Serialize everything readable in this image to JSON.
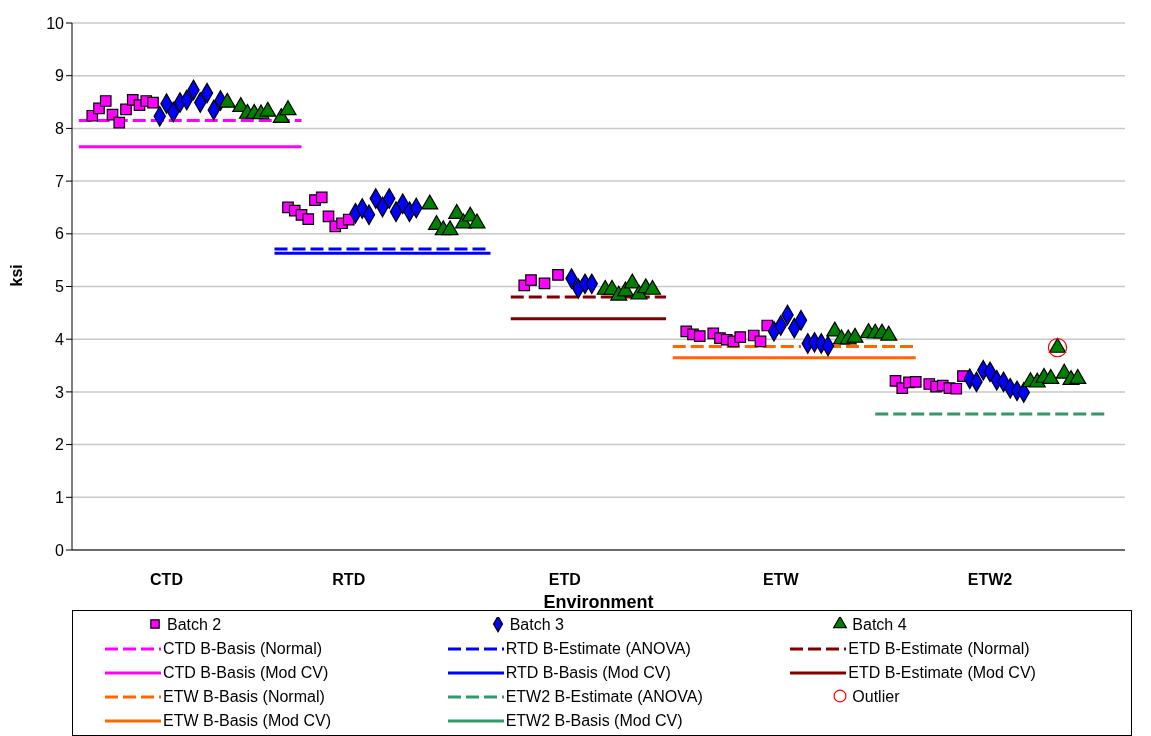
{
  "chart_data": {
    "type": "scatter",
    "xlabel": "Environment",
    "ylabel": "ksi",
    "categories": [
      null,
      null,
      null,
      null,
      null,
      null,
      null,
      null,
      null,
      null,
      null,
      null,
      null,
      null,
      "CTD",
      null,
      null,
      null,
      null,
      null,
      null,
      null,
      null,
      null,
      null,
      null,
      null,
      null,
      null,
      null,
      null,
      null,
      null,
      null,
      null,
      null,
      null,
      null,
      null,
      null,
      null,
      "RTD",
      null,
      null,
      null,
      null,
      null,
      null,
      null,
      null,
      null,
      null,
      null,
      null,
      null,
      null,
      null,
      null,
      null,
      null,
      null,
      null,
      null,
      null,
      null,
      null,
      null,
      null,
      null,
      null,
      null,
      null,
      null,
      "ETD",
      null,
      null,
      null,
      null,
      null,
      null,
      null,
      null,
      null,
      null,
      null,
      null,
      null,
      null,
      null,
      null,
      null,
      null,
      null,
      null,
      null,
      null,
      null,
      null,
      null,
      null,
      null,
      null,
      null,
      null,
      null,
      "ETW",
      null,
      null,
      null,
      null,
      null,
      null,
      null,
      null,
      null,
      null,
      null,
      null,
      null,
      null,
      null,
      null,
      null,
      null,
      null,
      null,
      null,
      null,
      null,
      null,
      null,
      null,
      null,
      null,
      null,
      null,
      "ETW2",
      null,
      null,
      null,
      null,
      null,
      null,
      null,
      null,
      null,
      null,
      null,
      null,
      null,
      null,
      null,
      null,
      null,
      null,
      null,
      null
    ],
    "ylim": [
      0,
      10
    ],
    "yticks": [
      0,
      1,
      2,
      3,
      4,
      5,
      6,
      7,
      8,
      9,
      10
    ],
    "grid": "y",
    "legend": "bottom",
    "series": [
      {
        "name": "Batch 2",
        "marker": "square",
        "color": "#ff00ff",
        "values": [
          null,
          null,
          null,
          8.24,
          8.38,
          8.52,
          8.26,
          8.11,
          8.36,
          8.54,
          8.44,
          8.52,
          8.49,
          null,
          null,
          null,
          null,
          null,
          null,
          null,
          null,
          null,
          null,
          null,
          null,
          null,
          null,
          null,
          null,
          null,
          null,
          null,
          6.5,
          6.44,
          6.36,
          6.28,
          6.64,
          6.69,
          6.33,
          6.14,
          6.2,
          6.27,
          null,
          null,
          null,
          null,
          null,
          null,
          null,
          null,
          null,
          null,
          null,
          null,
          null,
          null,
          null,
          null,
          null,
          null,
          null,
          null,
          null,
          null,
          null,
          null,
          null,
          5.02,
          5.12,
          null,
          5.06,
          null,
          5.22,
          null,
          null,
          null,
          null,
          null,
          null,
          null,
          null,
          null,
          null,
          null,
          null,
          null,
          null,
          null,
          null,
          null,
          null,
          4.15,
          4.09,
          4.06,
          null,
          4.11,
          4.02,
          3.99,
          3.96,
          4.04,
          null,
          4.07,
          3.96,
          4.26,
          null,
          null,
          null,
          null,
          null,
          null,
          null,
          null,
          null,
          null,
          null,
          null,
          null,
          null,
          null,
          null,
          null,
          null,
          3.21,
          3.07,
          3.18,
          3.19,
          null,
          3.15,
          3.1,
          3.12,
          3.07,
          3.06,
          3.3,
          null,
          null,
          null,
          null,
          null,
          null,
          null,
          null,
          null,
          null,
          null,
          null,
          null,
          null,
          null,
          null,
          null,
          null,
          null,
          null,
          null,
          null,
          null,
          null
        ]
      },
      {
        "name": "Batch 3",
        "marker": "diamond",
        "color": "#0000ff",
        "values": [
          null,
          null,
          null,
          null,
          null,
          null,
          null,
          null,
          null,
          null,
          null,
          null,
          null,
          8.23,
          8.47,
          8.31,
          8.49,
          8.54,
          8.73,
          8.49,
          8.67,
          8.35,
          8.53,
          null,
          null,
          null,
          null,
          null,
          null,
          null,
          null,
          null,
          null,
          null,
          null,
          null,
          null,
          null,
          null,
          null,
          null,
          null,
          6.39,
          6.48,
          6.36,
          6.67,
          6.51,
          6.67,
          6.42,
          6.57,
          6.42,
          6.49,
          null,
          null,
          null,
          null,
          null,
          null,
          null,
          null,
          null,
          null,
          null,
          null,
          null,
          null,
          null,
          null,
          null,
          null,
          null,
          null,
          null,
          null,
          5.15,
          4.96,
          5.05,
          5.05,
          null,
          null,
          null,
          null,
          null,
          null,
          null,
          null,
          null,
          null,
          null,
          null,
          null,
          null,
          null,
          null,
          null,
          null,
          null,
          null,
          null,
          null,
          null,
          null,
          null,
          null,
          4.15,
          4.26,
          4.46,
          4.21,
          4.36,
          3.92,
          3.94,
          3.92,
          3.87,
          null,
          null,
          null,
          null,
          null,
          null,
          null,
          null,
          null,
          null,
          null,
          null,
          null,
          null,
          null,
          null,
          null,
          null,
          null,
          null,
          3.25,
          3.19,
          3.41,
          3.38,
          3.22,
          3.19,
          3.07,
          3.02,
          2.99,
          null,
          null,
          null,
          null,
          null,
          null,
          null,
          null,
          null,
          null,
          null,
          null,
          null,
          null,
          null
        ]
      },
      {
        "name": "Batch 4",
        "marker": "triangle",
        "color": "#008000",
        "values": [
          null,
          null,
          null,
          null,
          null,
          null,
          null,
          null,
          null,
          null,
          null,
          null,
          null,
          null,
          null,
          null,
          null,
          null,
          null,
          null,
          null,
          null,
          null,
          8.49,
          null,
          8.41,
          8.28,
          8.28,
          8.27,
          8.32,
          null,
          8.2,
          8.35,
          null,
          null,
          null,
          null,
          null,
          null,
          null,
          null,
          null,
          null,
          null,
          null,
          null,
          null,
          null,
          null,
          null,
          null,
          null,
          null,
          6.56,
          6.17,
          6.07,
          6.07,
          6.38,
          6.2,
          6.33,
          6.2,
          null,
          null,
          null,
          null,
          null,
          null,
          null,
          null,
          null,
          null,
          null,
          null,
          null,
          null,
          null,
          null,
          null,
          null,
          4.94,
          4.94,
          4.83,
          4.91,
          5.06,
          4.85,
          4.97,
          4.94,
          null,
          null,
          null,
          null,
          null,
          null,
          null,
          null,
          null,
          null,
          null,
          null,
          null,
          null,
          null,
          null,
          null,
          null,
          null,
          null,
          null,
          null,
          null,
          null,
          null,
          null,
          4.15,
          4,
          4,
          4.03,
          null,
          4.12,
          4.11,
          4.11,
          4.07,
          null,
          null,
          null,
          null,
          null,
          null,
          null,
          null,
          null,
          null,
          null,
          null,
          null,
          null,
          null,
          null,
          null,
          null,
          null,
          null,
          3.19,
          3.18,
          3.27,
          3.25,
          3.84,
          3.35,
          3.23,
          3.25,
          null,
          null,
          null,
          null,
          null,
          null,
          null
        ]
      },
      {
        "name": "CTD B-Basis (Normal)",
        "type": "line",
        "line_style": "dashed",
        "color": "#ff00ff",
        "values": [
          null,
          8.15,
          8.15,
          8.15,
          8.15,
          8.15,
          8.15,
          8.15,
          8.15,
          8.15,
          8.15,
          8.15,
          8.15,
          8.15,
          8.15,
          8.15,
          8.15,
          8.15,
          8.15,
          8.15,
          8.15,
          8.15,
          8.15,
          8.15,
          8.15,
          8.15,
          8.15,
          8.15,
          8.15,
          8.15,
          8.15,
          8.15,
          8.15,
          8.15,
          8.15,
          null,
          null,
          null,
          null,
          null,
          null,
          null,
          null,
          null,
          null,
          null,
          null,
          null,
          null,
          null,
          null,
          null,
          null,
          null,
          null,
          null,
          null,
          null,
          null,
          null,
          null,
          null,
          null,
          null,
          null,
          null,
          null,
          null,
          null,
          null,
          null,
          null,
          null,
          null,
          null,
          null,
          null,
          null,
          null,
          null,
          null,
          null,
          null,
          null,
          null,
          null,
          null,
          null,
          null,
          null,
          null,
          null,
          null,
          null,
          null,
          null,
          null,
          null,
          null,
          null,
          null,
          null,
          null,
          null,
          null,
          null,
          null,
          null,
          null,
          null,
          null,
          null,
          null,
          null,
          null,
          null,
          null,
          null,
          null,
          null,
          null,
          null,
          null,
          null,
          null,
          null,
          null,
          null,
          null,
          null,
          null,
          null,
          null,
          null,
          null,
          null,
          null,
          null,
          null,
          null,
          null,
          null,
          null,
          null,
          null,
          null,
          null,
          null,
          null,
          null,
          null,
          null,
          null,
          null,
          null,
          null,
          null
        ]
      },
      {
        "name": "RTD B-Estimate (ANOVA)",
        "type": "line",
        "line_style": "dashed",
        "color": "#0000ff",
        "values": [
          null,
          null,
          null,
          null,
          null,
          null,
          null,
          null,
          null,
          null,
          null,
          null,
          null,
          null,
          null,
          null,
          null,
          null,
          null,
          null,
          null,
          null,
          null,
          null,
          null,
          null,
          null,
          null,
          null,
          null,
          5.71,
          5.71,
          5.71,
          5.71,
          5.71,
          5.71,
          5.71,
          5.71,
          5.71,
          5.71,
          5.71,
          5.71,
          5.71,
          5.71,
          5.71,
          5.71,
          5.71,
          5.71,
          5.71,
          5.71,
          5.71,
          5.71,
          5.71,
          5.71,
          5.71,
          5.71,
          5.71,
          5.71,
          5.71,
          5.71,
          5.71,
          5.71,
          5.71,
          null,
          null,
          null,
          null,
          null,
          null,
          null,
          null,
          null,
          null,
          null,
          null,
          null,
          null,
          null,
          null,
          null,
          null,
          null,
          null,
          null,
          null,
          null,
          null,
          null,
          null,
          null,
          null,
          null,
          null,
          null,
          null,
          null,
          null,
          null,
          null,
          null,
          null,
          null,
          null,
          null,
          null,
          null,
          null,
          null,
          null,
          null,
          null,
          null,
          null,
          null,
          null,
          null,
          null,
          null,
          null,
          null,
          null,
          null,
          null,
          null,
          null,
          null,
          null,
          null,
          null,
          null,
          null,
          null,
          null,
          null,
          null,
          null,
          null,
          null,
          null,
          null,
          null,
          null,
          null,
          null,
          null,
          null,
          null,
          null,
          null,
          null,
          null,
          null,
          null,
          null,
          null,
          null,
          null
        ]
      },
      {
        "name": "ETD B-Estimate (Normal)",
        "type": "line",
        "line_style": "dashed",
        "color": "#800000",
        "values": [
          null,
          null,
          null,
          null,
          null,
          null,
          null,
          null,
          null,
          null,
          null,
          null,
          null,
          null,
          null,
          null,
          null,
          null,
          null,
          null,
          null,
          null,
          null,
          null,
          null,
          null,
          null,
          null,
          null,
          null,
          null,
          null,
          null,
          null,
          null,
          null,
          null,
          null,
          null,
          null,
          null,
          null,
          null,
          null,
          null,
          null,
          null,
          null,
          null,
          null,
          null,
          null,
          null,
          null,
          null,
          null,
          null,
          null,
          null,
          null,
          null,
          null,
          null,
          null,
          null,
          4.8,
          4.8,
          4.8,
          4.8,
          4.8,
          4.8,
          4.8,
          4.8,
          4.8,
          4.8,
          4.8,
          4.8,
          4.8,
          4.8,
          4.8,
          4.8,
          4.8,
          4.8,
          4.8,
          4.8,
          4.8,
          4.8,
          4.8,
          4.8,
          null,
          null,
          null,
          null,
          null,
          null,
          null,
          null,
          null,
          null,
          null,
          null,
          null,
          null,
          null,
          null,
          null,
          null,
          null,
          null,
          null,
          null,
          null,
          null,
          null,
          null,
          null,
          null,
          null,
          null,
          null,
          null,
          null,
          null,
          null,
          null,
          null,
          null,
          null,
          null,
          null,
          null,
          null,
          null,
          null,
          null,
          null,
          null,
          null,
          null,
          null,
          null,
          null,
          null,
          null,
          null,
          null,
          null,
          null,
          null,
          null,
          null,
          null,
          null,
          null,
          null,
          null,
          null
        ]
      },
      {
        "name": "CTD B-Basis (Mod CV)",
        "type": "line",
        "line_style": "solid",
        "color": "#ff00ff",
        "values": [
          null,
          7.65,
          7.65,
          7.65,
          7.65,
          7.65,
          7.65,
          7.65,
          7.65,
          7.65,
          7.65,
          7.65,
          7.65,
          7.65,
          7.65,
          7.65,
          7.65,
          7.65,
          7.65,
          7.65,
          7.65,
          7.65,
          7.65,
          7.65,
          7.65,
          7.65,
          7.65,
          7.65,
          7.65,
          7.65,
          7.65,
          7.65,
          7.65,
          7.65,
          7.65,
          null,
          null,
          null,
          null,
          null,
          null,
          null,
          null,
          null,
          null,
          null,
          null,
          null,
          null,
          null,
          null,
          null,
          null,
          null,
          null,
          null,
          null,
          null,
          null,
          null,
          null,
          null,
          null,
          null,
          null,
          null,
          null,
          null,
          null,
          null,
          null,
          null,
          null,
          null,
          null,
          null,
          null,
          null,
          null,
          null,
          null,
          null,
          null,
          null,
          null,
          null,
          null,
          null,
          null,
          null,
          null,
          null,
          null,
          null,
          null,
          null,
          null,
          null,
          null,
          null,
          null,
          null,
          null,
          null,
          null,
          null,
          null,
          null,
          null,
          null,
          null,
          null,
          null,
          null,
          null,
          null,
          null,
          null,
          null,
          null,
          null,
          null,
          null,
          null,
          null,
          null,
          null,
          null,
          null,
          null,
          null,
          null,
          null,
          null,
          null,
          null,
          null,
          null,
          null,
          null,
          null,
          null,
          null,
          null,
          null,
          null,
          null,
          null,
          null,
          null,
          null,
          null,
          null,
          null,
          null,
          null,
          null
        ]
      },
      {
        "name": "RTD B-Basis (Mod CV)",
        "type": "line",
        "line_style": "solid",
        "color": "#0000ff",
        "values": [
          null,
          null,
          null,
          null,
          null,
          null,
          null,
          null,
          null,
          null,
          null,
          null,
          null,
          null,
          null,
          null,
          null,
          null,
          null,
          null,
          null,
          null,
          null,
          null,
          null,
          null,
          null,
          null,
          null,
          null,
          5.63,
          5.63,
          5.63,
          5.63,
          5.63,
          5.63,
          5.63,
          5.63,
          5.63,
          5.63,
          5.63,
          5.63,
          5.63,
          5.63,
          5.63,
          5.63,
          5.63,
          5.63,
          5.63,
          5.63,
          5.63,
          5.63,
          5.63,
          5.63,
          5.63,
          5.63,
          5.63,
          5.63,
          5.63,
          5.63,
          5.63,
          5.63,
          5.63,
          null,
          null,
          null,
          null,
          null,
          null,
          null,
          null,
          null,
          null,
          null,
          null,
          null,
          null,
          null,
          null,
          null,
          null,
          null,
          null,
          null,
          null,
          null,
          null,
          null,
          null,
          null,
          null,
          null,
          null,
          null,
          null,
          null,
          null,
          null,
          null,
          null,
          null,
          null,
          null,
          null,
          null,
          null,
          null,
          null,
          null,
          null,
          null,
          null,
          null,
          null,
          null,
          null,
          null,
          null,
          null,
          null,
          null,
          null,
          null,
          null,
          null,
          null,
          null,
          null,
          null,
          null,
          null,
          null,
          null,
          null,
          null,
          null,
          null,
          null,
          null,
          null,
          null,
          null,
          null,
          null,
          null,
          null,
          null,
          null,
          null,
          null,
          null,
          null,
          null,
          null,
          null,
          null,
          null
        ]
      },
      {
        "name": "ETD B-Estimate (Mod CV)",
        "type": "line",
        "line_style": "solid",
        "color": "#800000",
        "values": [
          null,
          null,
          null,
          null,
          null,
          null,
          null,
          null,
          null,
          null,
          null,
          null,
          null,
          null,
          null,
          null,
          null,
          null,
          null,
          null,
          null,
          null,
          null,
          null,
          null,
          null,
          null,
          null,
          null,
          null,
          null,
          null,
          null,
          null,
          null,
          null,
          null,
          null,
          null,
          null,
          null,
          null,
          null,
          null,
          null,
          null,
          null,
          null,
          null,
          null,
          null,
          null,
          null,
          null,
          null,
          null,
          null,
          null,
          null,
          null,
          null,
          null,
          null,
          null,
          null,
          4.39,
          4.39,
          4.39,
          4.39,
          4.39,
          4.39,
          4.39,
          4.39,
          4.39,
          4.39,
          4.39,
          4.39,
          4.39,
          4.39,
          4.39,
          4.39,
          4.39,
          4.39,
          4.39,
          4.39,
          4.39,
          4.39,
          4.39,
          4.39,
          null,
          null,
          null,
          null,
          null,
          null,
          null,
          null,
          null,
          null,
          null,
          null,
          null,
          null,
          null,
          null,
          null,
          null,
          null,
          null,
          null,
          null,
          null,
          null,
          null,
          null,
          null,
          null,
          null,
          null,
          null,
          null,
          null,
          null,
          null,
          null,
          null,
          null,
          null,
          null,
          null,
          null,
          null,
          null,
          null,
          null,
          null,
          null,
          null,
          null,
          null,
          null,
          null,
          null,
          null,
          null,
          null,
          null,
          null,
          null,
          null,
          null,
          null,
          null,
          null,
          null,
          null,
          null
        ]
      },
      {
        "name": "ETW B-Basis (Normal)",
        "type": "line",
        "line_style": "dashed",
        "color": "#ff6600",
        "values": [
          null,
          null,
          null,
          null,
          null,
          null,
          null,
          null,
          null,
          null,
          null,
          null,
          null,
          null,
          null,
          null,
          null,
          null,
          null,
          null,
          null,
          null,
          null,
          null,
          null,
          null,
          null,
          null,
          null,
          null,
          null,
          null,
          null,
          null,
          null,
          null,
          null,
          null,
          null,
          null,
          null,
          null,
          null,
          null,
          null,
          null,
          null,
          null,
          null,
          null,
          null,
          null,
          null,
          null,
          null,
          null,
          null,
          null,
          null,
          null,
          null,
          null,
          null,
          null,
          null,
          null,
          null,
          null,
          null,
          null,
          null,
          null,
          null,
          null,
          null,
          null,
          null,
          null,
          null,
          null,
          null,
          null,
          null,
          null,
          null,
          null,
          null,
          null,
          null,
          3.86,
          3.86,
          3.86,
          3.86,
          3.86,
          3.86,
          3.86,
          3.86,
          3.86,
          3.86,
          3.86,
          3.86,
          3.86,
          3.86,
          3.86,
          3.86,
          3.86,
          3.86,
          3.86,
          3.86,
          null,
          null,
          null,
          3.86,
          3.86,
          3.86,
          3.86,
          3.86,
          3.86,
          3.86,
          3.86,
          3.86,
          3.86,
          3.86,
          3.86,
          3.86,
          3.86,
          null,
          null,
          null,
          null,
          null,
          null,
          null,
          null,
          null,
          null,
          null,
          null,
          null,
          null,
          null,
          null,
          null,
          null,
          null,
          null,
          null,
          null,
          null,
          null,
          null,
          null,
          null,
          null,
          null,
          null,
          null
        ]
      },
      {
        "name": "ETW2 B-Estimate (ANOVA)",
        "type": "line",
        "line_style": "dashed",
        "color": "#339966",
        "values": [
          null,
          null,
          null,
          null,
          null,
          null,
          null,
          null,
          null,
          null,
          null,
          null,
          null,
          null,
          null,
          null,
          null,
          null,
          null,
          null,
          null,
          null,
          null,
          null,
          null,
          null,
          null,
          null,
          null,
          null,
          null,
          null,
          null,
          null,
          null,
          null,
          null,
          null,
          null,
          null,
          null,
          null,
          null,
          null,
          null,
          null,
          null,
          null,
          null,
          null,
          null,
          null,
          null,
          null,
          null,
          null,
          null,
          null,
          null,
          null,
          null,
          null,
          null,
          null,
          null,
          null,
          null,
          null,
          null,
          null,
          null,
          null,
          null,
          null,
          null,
          null,
          null,
          null,
          null,
          null,
          null,
          null,
          null,
          null,
          null,
          null,
          null,
          null,
          null,
          null,
          null,
          null,
          null,
          null,
          null,
          null,
          null,
          null,
          null,
          null,
          null,
          null,
          null,
          null,
          null,
          null,
          null,
          null,
          null,
          null,
          null,
          null,
          null,
          null,
          null,
          null,
          null,
          null,
          null,
          2.58,
          2.58,
          2.58,
          2.58,
          2.58,
          2.58,
          2.58,
          2.58,
          2.58,
          2.58,
          2.58,
          2.58,
          2.58,
          2.58,
          2.58,
          2.58,
          2.58,
          2.58,
          2.58,
          2.58,
          2.58,
          2.58,
          2.58,
          2.58,
          2.58,
          2.58,
          2.58,
          2.58,
          2.58,
          2.58,
          2.58,
          2.58,
          2.58,
          2.58,
          2.58,
          null,
          null,
          null
        ]
      },
      {
        "name": "Outlier",
        "marker": "circle",
        "color": "#ff0000",
        "values": [
          null,
          null,
          null,
          null,
          null,
          null,
          null,
          null,
          null,
          null,
          null,
          null,
          null,
          null,
          null,
          null,
          null,
          null,
          null,
          null,
          null,
          null,
          null,
          null,
          null,
          null,
          null,
          null,
          null,
          null,
          null,
          null,
          null,
          null,
          null,
          null,
          null,
          null,
          null,
          null,
          null,
          null,
          null,
          null,
          null,
          null,
          null,
          null,
          null,
          null,
          null,
          null,
          null,
          null,
          null,
          null,
          null,
          null,
          null,
          null,
          null,
          null,
          null,
          null,
          null,
          null,
          null,
          null,
          null,
          null,
          null,
          null,
          null,
          null,
          null,
          null,
          null,
          null,
          null,
          null,
          null,
          null,
          null,
          null,
          null,
          null,
          null,
          null,
          null,
          null,
          null,
          null,
          null,
          null,
          null,
          null,
          null,
          null,
          null,
          null,
          null,
          null,
          null,
          null,
          null,
          null,
          null,
          null,
          null,
          null,
          null,
          null,
          null,
          null,
          null,
          null,
          null,
          null,
          null,
          null,
          null,
          null,
          null,
          null,
          null,
          null,
          null,
          null,
          null,
          null,
          null,
          null,
          null,
          null,
          null,
          null,
          null,
          null,
          null,
          null,
          null,
          null,
          null,
          null,
          null,
          null,
          3.84,
          null,
          null,
          null,
          null,
          null,
          null,
          null,
          null,
          null,
          null
        ]
      },
      {
        "name": "ETW B-Basis (Mod CV)",
        "type": "line",
        "line_style": "solid",
        "color": "#ff6600",
        "values": [
          null,
          null,
          null,
          null,
          null,
          null,
          null,
          null,
          null,
          null,
          null,
          null,
          null,
          null,
          null,
          null,
          null,
          null,
          null,
          null,
          null,
          null,
          null,
          null,
          null,
          null,
          null,
          null,
          null,
          null,
          null,
          null,
          null,
          null,
          null,
          null,
          null,
          null,
          null,
          null,
          null,
          null,
          null,
          null,
          null,
          null,
          null,
          null,
          null,
          null,
          null,
          null,
          null,
          null,
          null,
          null,
          null,
          null,
          null,
          null,
          null,
          null,
          null,
          null,
          null,
          null,
          null,
          null,
          null,
          null,
          null,
          null,
          null,
          null,
          null,
          null,
          null,
          null,
          null,
          null,
          null,
          null,
          null,
          null,
          null,
          null,
          null,
          null,
          null,
          3.65,
          3.65,
          3.65,
          3.65,
          3.65,
          3.65,
          3.65,
          3.65,
          3.65,
          3.65,
          3.65,
          3.65,
          3.65,
          3.65,
          3.65,
          3.65,
          3.65,
          3.65,
          3.65,
          3.65,
          3.65,
          3.65,
          3.65,
          3.65,
          3.65,
          3.65,
          3.65,
          3.65,
          3.65,
          3.65,
          3.65,
          3.65,
          3.65,
          3.65,
          3.65,
          3.65,
          3.65,
          null,
          null,
          null,
          null,
          null,
          null,
          null,
          null,
          null,
          null,
          null,
          null,
          null,
          null,
          null,
          null,
          null,
          null,
          null,
          null,
          null,
          null,
          null,
          null,
          null,
          null,
          null,
          null,
          null,
          null,
          null
        ]
      },
      {
        "name": "ETW2 B-Basis (Mod CV)",
        "type": "line",
        "line_style": "solid",
        "color": "#339966",
        "values": [
          null,
          null,
          null,
          null,
          null,
          null,
          null,
          null,
          null,
          null,
          null,
          null,
          null,
          null,
          null,
          null,
          null,
          null,
          null,
          null,
          null,
          null,
          null,
          null,
          null,
          null,
          null,
          null,
          null,
          null,
          null,
          null,
          null,
          null,
          null,
          null,
          null,
          null,
          null,
          null,
          null,
          null,
          null,
          null,
          null,
          null,
          null,
          null,
          null,
          null,
          null,
          null,
          null,
          null,
          null,
          null,
          null,
          null,
          null,
          null,
          null,
          null,
          null,
          null,
          null,
          null,
          null,
          null,
          null,
          null,
          null,
          null,
          null,
          null,
          null,
          null,
          null,
          null,
          null,
          null,
          null,
          null,
          null,
          null,
          null,
          null,
          null,
          null,
          null,
          null,
          null,
          null,
          null,
          null,
          null,
          null,
          null,
          null,
          null,
          null,
          null,
          null,
          null,
          null,
          null,
          null,
          null,
          null,
          null,
          null,
          null,
          null,
          null,
          null,
          null,
          null,
          null,
          null,
          null,
          null,
          null,
          null,
          null,
          null,
          null,
          null,
          null,
          null,
          null,
          null,
          null,
          null,
          null,
          null,
          null,
          null,
          null,
          null,
          null,
          null,
          null,
          null,
          null,
          null,
          null,
          null,
          null,
          null,
          null,
          null,
          null,
          null,
          null,
          null,
          null,
          null,
          null
        ]
      }
    ]
  }
}
